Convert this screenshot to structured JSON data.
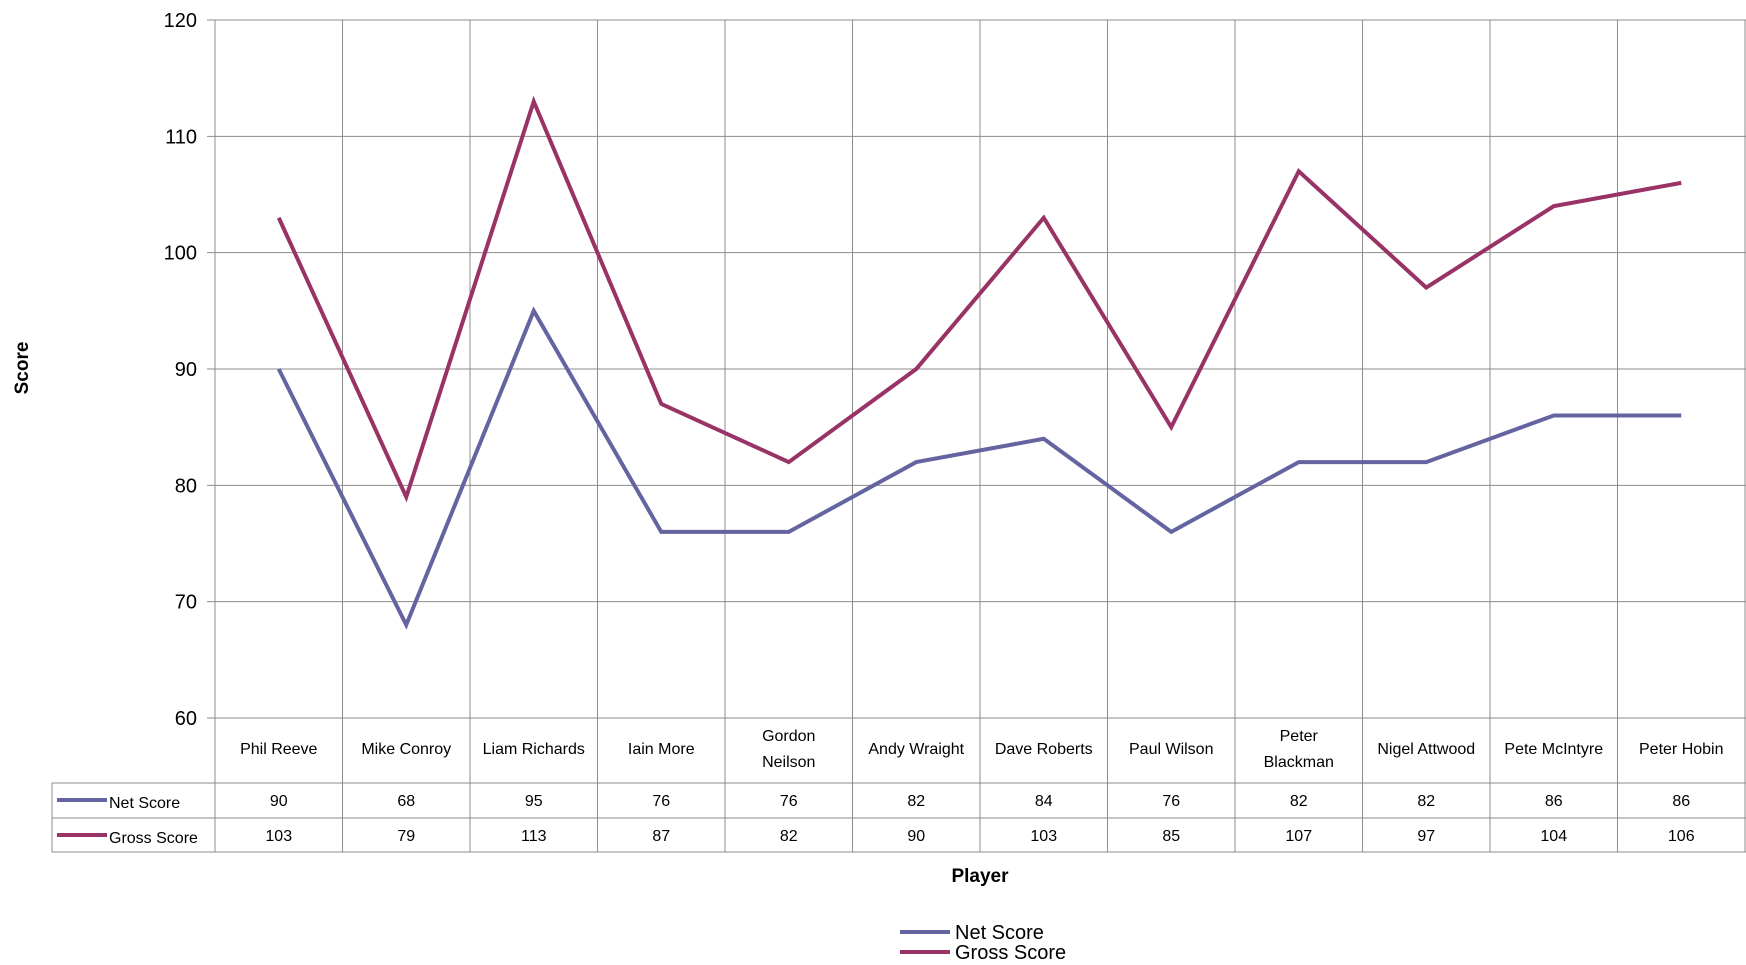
{
  "chart_data": {
    "type": "line",
    "title": "",
    "xlabel": "Player",
    "ylabel": "Score",
    "ylim": [
      60,
      120
    ],
    "yticks": [
      60,
      70,
      80,
      90,
      100,
      110,
      120
    ],
    "grid": true,
    "legend_position": "bottom",
    "data_table": true,
    "categories": [
      "Phil Reeve",
      "Mike Conroy",
      "Liam Richards",
      "Iain More",
      "Gordon Neilson",
      "Andy Wraight",
      "Dave Roberts",
      "Paul Wilson",
      "Peter Blackman",
      "Nigel Attwood",
      "Pete McIntyre",
      "Peter Hobin"
    ],
    "series": [
      {
        "name": "Net Score",
        "color": "#6464a0",
        "values": [
          90,
          68,
          95,
          76,
          76,
          82,
          84,
          76,
          82,
          82,
          86,
          86
        ]
      },
      {
        "name": "Gross Score",
        "color": "#993366",
        "values": [
          103,
          79,
          113,
          87,
          82,
          90,
          103,
          85,
          107,
          97,
          104,
          106
        ]
      }
    ]
  }
}
